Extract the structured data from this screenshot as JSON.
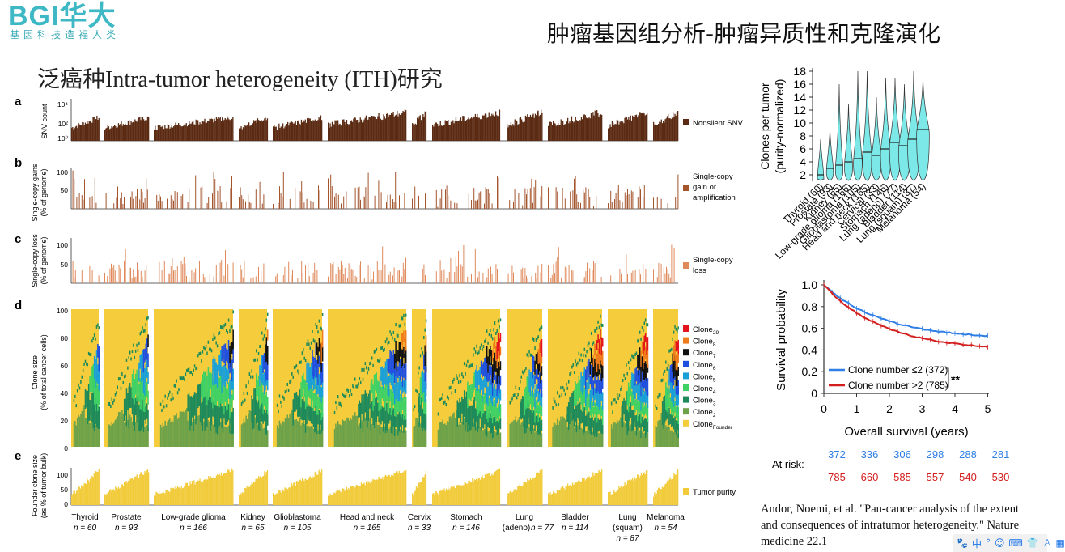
{
  "header": {
    "logo_text": "BGI华大",
    "logo_tagline": "基因科技造福人类",
    "slide_title": "肿瘤基因组分析-肿瘤异质性和克隆演化",
    "subtitle": "泛癌种Intra-tumor heterogeneity (ITH)研究"
  },
  "figure_left": {
    "panel_labels": [
      "a",
      "b",
      "c",
      "d",
      "e"
    ],
    "panel_a": {
      "ylabel": "SNV count",
      "ticks": [
        "10⁴",
        "10²",
        "10⁰"
      ],
      "legend": "Nonsilent SNV",
      "color": "#5a2a12"
    },
    "panel_b": {
      "ylabel_1": "Single-copy gains",
      "ylabel_2": "(% of genome)",
      "ticks": [
        "100",
        "50"
      ],
      "legend_1": "Single-copy",
      "legend_2": "gain or",
      "legend_3": "amplification",
      "color": "#a4552c"
    },
    "panel_c": {
      "ylabel_1": "Single-copy loss",
      "ylabel_2": "(% of genome)",
      "ticks": [
        "100",
        "50"
      ],
      "legend_1": "Single-copy",
      "legend_2": "loss",
      "color": "#e08a5c"
    },
    "panel_d": {
      "ylabel_1": "Clone size",
      "ylabel_2": "(% of total cancer cells)",
      "ticks": [
        "100",
        "80",
        "60",
        "40",
        "20",
        "0"
      ],
      "legend": [
        {
          "label": "Clone",
          "sub": "29",
          "color": "#e3141c"
        },
        {
          "label": "Clone",
          "sub": "8",
          "color": "#f07b1a"
        },
        {
          "label": "Clone",
          "sub": "7",
          "color": "#111111"
        },
        {
          "label": "Clone",
          "sub": "6",
          "color": "#1f4fe0"
        },
        {
          "label": "Clone",
          "sub": "5",
          "color": "#1aa0d8"
        },
        {
          "label": "Clone",
          "sub": "4",
          "color": "#3ed166"
        },
        {
          "label": "Clone",
          "sub": "3",
          "color": "#1c8a5a"
        },
        {
          "label": "Clone",
          "sub": "2",
          "color": "#6ea24a"
        },
        {
          "label": "Clone",
          "sub": "Founder",
          "color": "#f4cc3c"
        }
      ]
    },
    "panel_e": {
      "ylabel_1": "Founder clone size",
      "ylabel_2": "(as % of tumor bulk)",
      "ticks": [
        "100",
        "50",
        "0"
      ],
      "legend": "Tumor purity",
      "color": "#f2cb3a"
    },
    "cancer_groups": [
      {
        "name": "Thyroid",
        "n": "n = 60"
      },
      {
        "name": "Prostate",
        "n": "n = 93"
      },
      {
        "name": "Low-grade glioma",
        "n": "n = 166"
      },
      {
        "name": "Kidney",
        "n": "n = 65"
      },
      {
        "name": "Glioblastoma",
        "n": "n = 105"
      },
      {
        "name": "Head and neck",
        "n": "n = 165"
      },
      {
        "name": "Cervix",
        "n": "n = 33"
      },
      {
        "name": "Stomach",
        "n": "n = 146"
      },
      {
        "name": "Lung",
        "name2": "(adeno)",
        "n": "n = 77"
      },
      {
        "name": "Bladder",
        "n": "n = 114"
      },
      {
        "name": "Lung",
        "name2": "(squam)",
        "n": "n = 87"
      },
      {
        "name": "Melanoma",
        "n": "n = 54"
      }
    ]
  },
  "violin_plot": {
    "ylabel_1": "Clones per tumor",
    "ylabel_2": "(purity-normalized)",
    "ticks": [
      "18",
      "16",
      "14",
      "12",
      "10",
      "8",
      "6",
      "4",
      "2"
    ],
    "color": "#7de8e8",
    "categories": [
      "Thyroid (60)",
      "Prostate (93)",
      "Kidney (65)",
      "Low-grade glioma (166)",
      "Glioblastoma (105)",
      "Head and neck (165)",
      "Cervical (33)",
      "Stomach (146)",
      "Lung (adeno) (77)",
      "Bladder (114)",
      "Lung (squam) (87)",
      "Melanoma (54)"
    ],
    "medians": [
      2,
      3,
      3.5,
      4,
      4.5,
      5.5,
      5,
      6,
      7,
      6.5,
      7.5,
      9
    ],
    "maxima": [
      7.5,
      9,
      16,
      13,
      18,
      18,
      14,
      17,
      17,
      16,
      18,
      17
    ]
  },
  "survival_plot": {
    "ylabel": "Survival probability",
    "xlabel": "Overall survival (years)",
    "yticks": [
      "1.0",
      "0.8",
      "0.6",
      "0.4",
      "0.2",
      "0"
    ],
    "xticks": [
      "0",
      "1",
      "2",
      "3",
      "4",
      "5"
    ],
    "series": [
      {
        "name": "Clone number ≤2 (372)",
        "color": "#2f7fe6",
        "end": 0.53
      },
      {
        "name": "Clone number >2 (785)",
        "color": "#d41e1e",
        "end": 0.43
      }
    ],
    "significance": "**",
    "at_risk_label": "At risk:",
    "at_risk_low": [
      "372",
      "336",
      "306",
      "298",
      "288",
      "281"
    ],
    "at_risk_high": [
      "785",
      "660",
      "585",
      "557",
      "540",
      "530"
    ]
  },
  "citation": "Andor, Noemi, et al. \"Pan-cancer analysis of the extent and consequences of intratumor heterogeneity.\" Nature medicine 22.1",
  "taskbar": {
    "items": [
      "paw-icon",
      "中",
      "°",
      "☺",
      "keyboard-icon",
      "shirt-icon",
      "user-icon",
      "grid-icon"
    ]
  }
}
